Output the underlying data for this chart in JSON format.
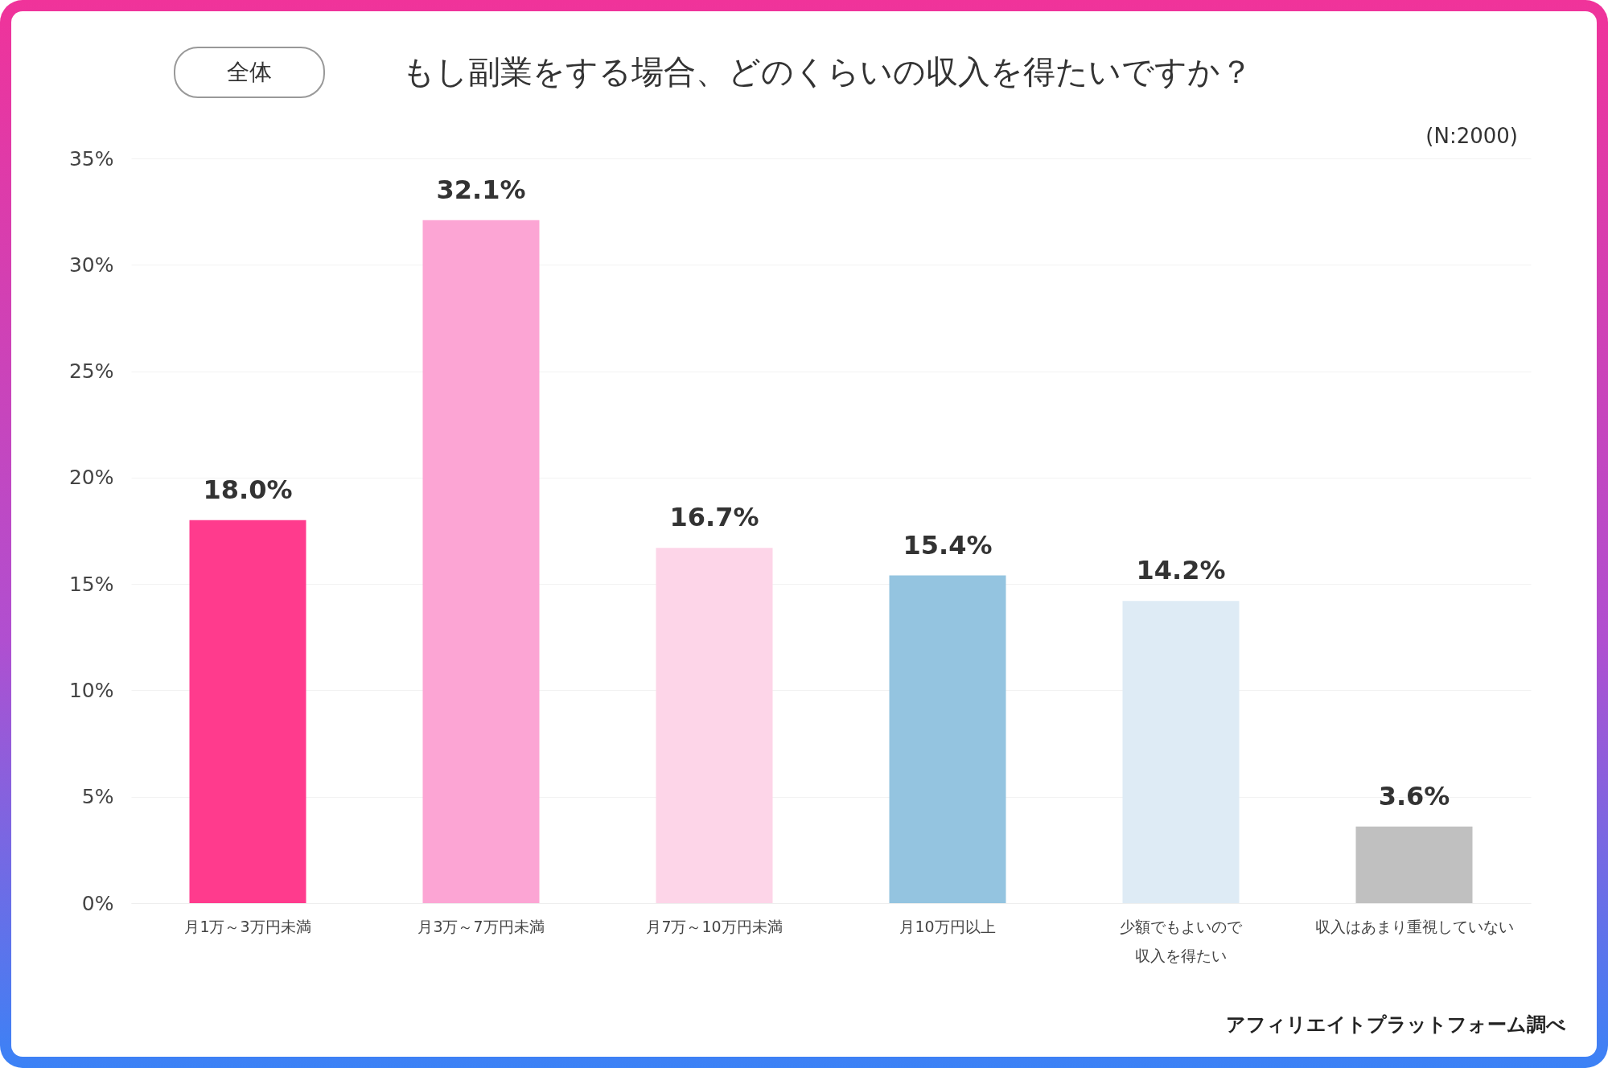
{
  "chart_data": {
    "type": "bar",
    "title": "もし副業をする場合、どのくらいの収入を得たいですか？",
    "subtitle": "全体",
    "categories": [
      "月1万～3万円未満",
      "月3万～7万円未満",
      "月7万～10万円未満",
      "月10万円以上",
      "少額でもよいので収入を得たい",
      "収入はあまり重視していない"
    ],
    "values": [
      18.0,
      32.1,
      16.7,
      15.4,
      14.2,
      3.6
    ],
    "colors": [
      "#ff3b8d",
      "#fca5d4",
      "#fdd5e8",
      "#94c4e0",
      "#deebf5",
      "#c0c0c0"
    ],
    "value_labels": [
      "18.0%",
      "32.1%",
      "16.7%",
      "15.4%",
      "14.2%",
      "3.6%"
    ],
    "ylim": [
      0,
      35
    ],
    "yticks": [
      {
        "value": 0,
        "label": "0%"
      },
      {
        "value": 5,
        "label": "5%"
      },
      {
        "value": 10,
        "label": "10%"
      },
      {
        "value": 15,
        "label": "15%"
      },
      {
        "value": 20,
        "label": "20%"
      },
      {
        "value": 25,
        "label": "25%"
      },
      {
        "value": 30,
        "label": "30%"
      },
      {
        "value": 35,
        "label": "35%"
      }
    ],
    "grid": "y",
    "annotations": [
      "(N:2000)",
      "アフィリエイトプラットフォーム調べ"
    ]
  }
}
